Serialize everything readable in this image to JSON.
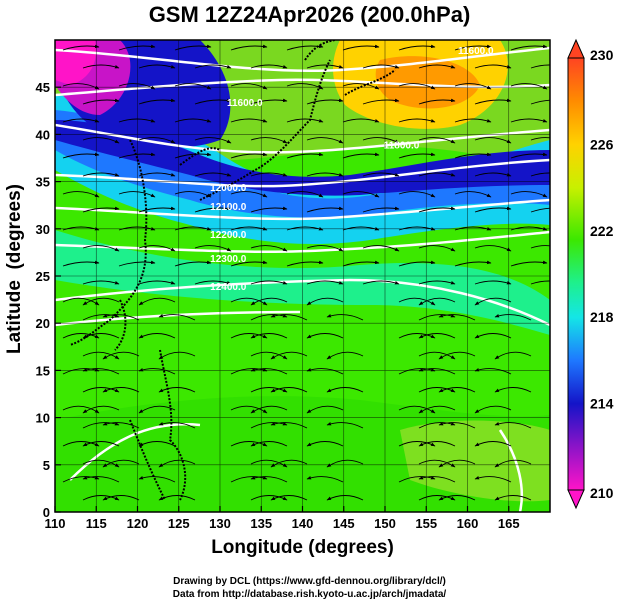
{
  "title": "GSM 12Z24Apr2026 (200.0hPa)",
  "x_axis": {
    "label": "Longitude (degrees)",
    "range": [
      110,
      170
    ],
    "ticks": [
      110,
      115,
      120,
      125,
      130,
      135,
      140,
      145,
      150,
      155,
      160,
      165
    ]
  },
  "y_axis": {
    "label": "Latitude  (degrees)",
    "range": [
      0,
      50
    ],
    "ticks": [
      0,
      5,
      10,
      15,
      20,
      25,
      30,
      35,
      40,
      45
    ]
  },
  "colorbar": {
    "min": 210,
    "max": 230,
    "tick_labels": [
      "230",
      "226",
      "222",
      "218",
      "214",
      "210"
    ],
    "colors": [
      "#ff4422",
      "#ff8c00",
      "#ffd200",
      "#c8f000",
      "#3ce800",
      "#1ef08c",
      "#14e6e6",
      "#1e78ff",
      "#1414c8",
      "#8c14c8",
      "#ff14c8"
    ]
  },
  "contour_labels": [
    {
      "text": "11600.0",
      "lon": 161,
      "lat": 48.5
    },
    {
      "text": "11600.0",
      "lon": 133,
      "lat": 43.0
    },
    {
      "text": "11800.0",
      "lon": 152,
      "lat": 38.5
    },
    {
      "text": "12000.0",
      "lon": 131,
      "lat": 34.0
    },
    {
      "text": "12100.0",
      "lon": 131,
      "lat": 32.0
    },
    {
      "text": "12200.0",
      "lon": 131,
      "lat": 29.0
    },
    {
      "text": "12300.0",
      "lon": 131,
      "lat": 26.5
    },
    {
      "text": "12400.0",
      "lon": 131,
      "lat": 23.5
    }
  ],
  "credits": {
    "line1": "Drawing by DCL (https://www.gfd-dennou.org/library/dcl/)",
    "line2": "Data from http://database.rish.kyoto-u.ac.jp/arch/jmadata/"
  }
}
